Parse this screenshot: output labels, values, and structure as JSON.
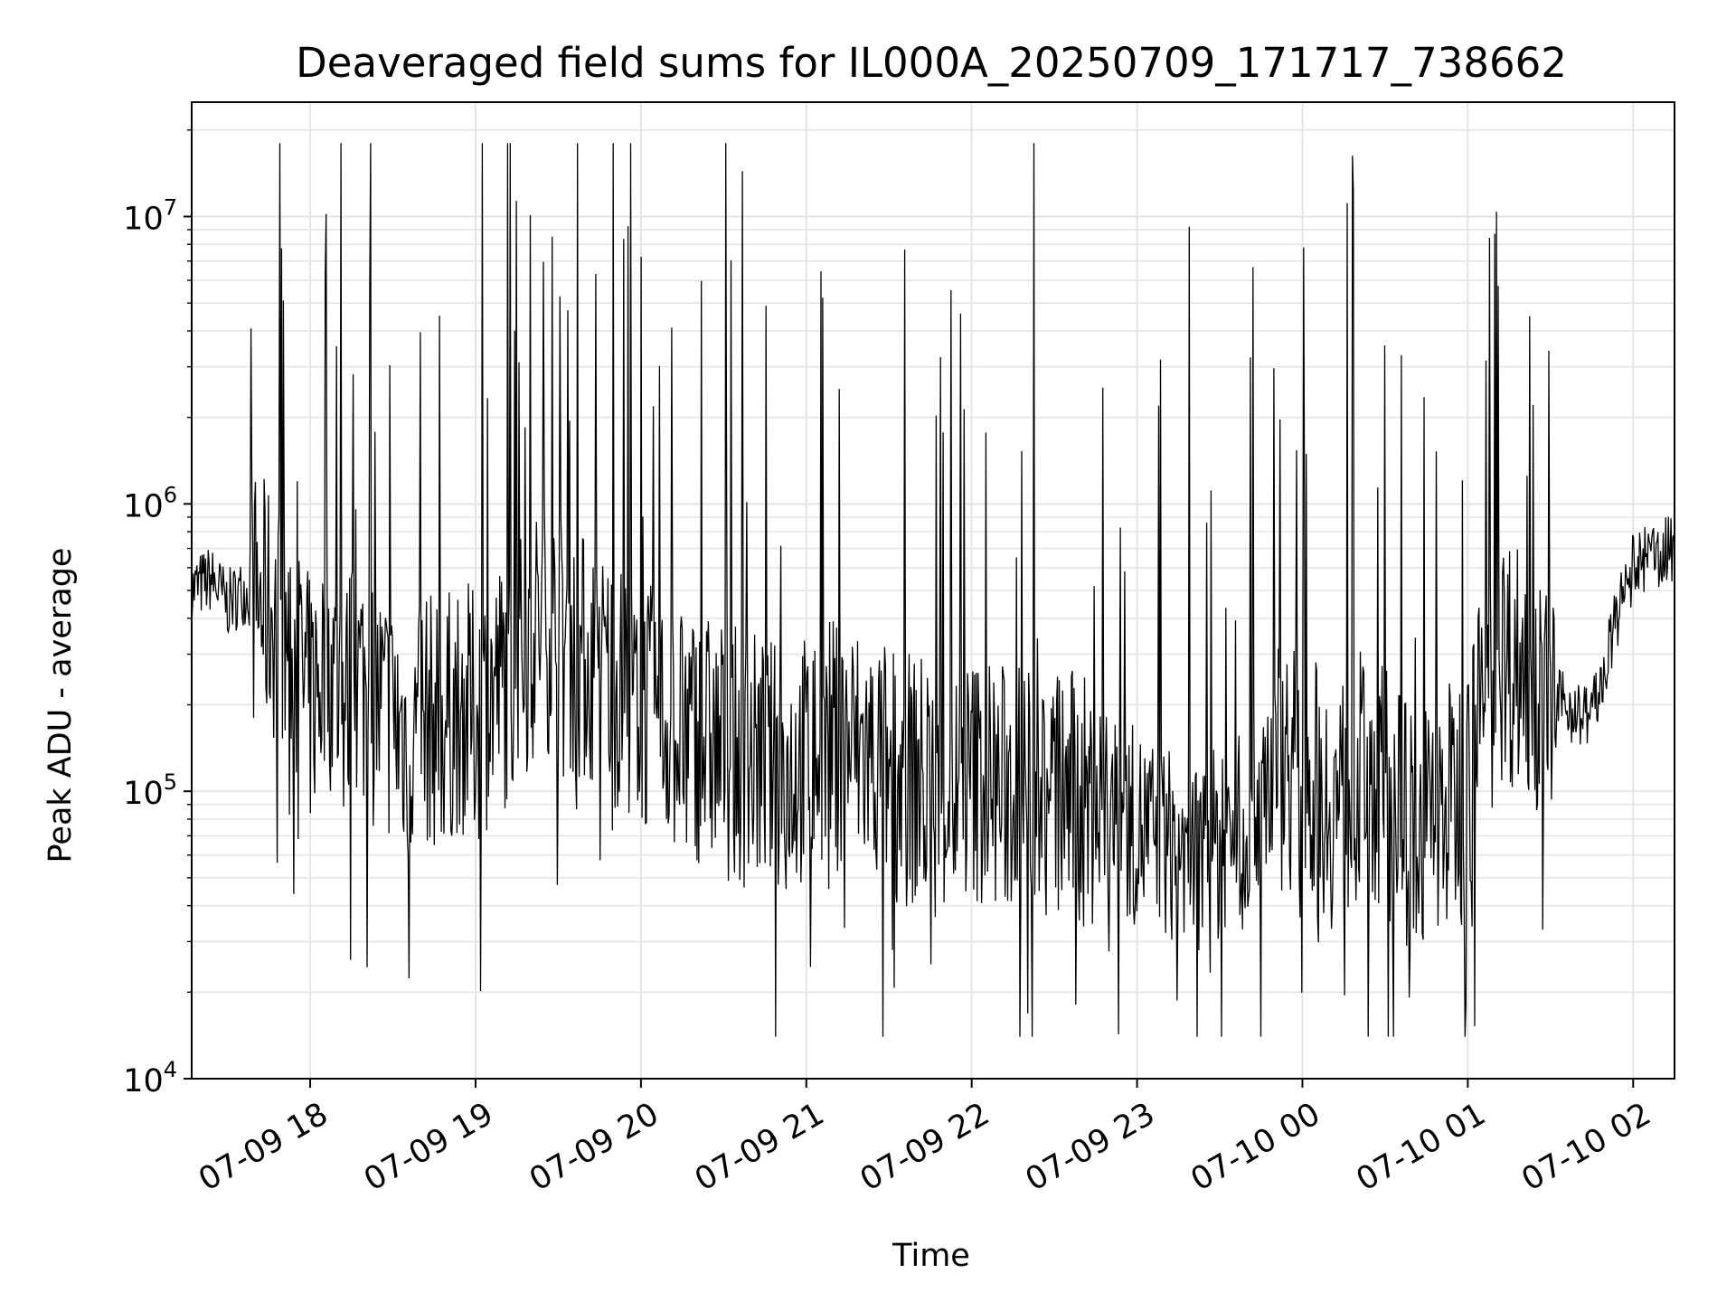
{
  "chart_data": {
    "type": "line",
    "title": "Deaveraged field sums for IL000A_20250709_171717_738662",
    "xlabel": "Time",
    "ylabel": "Peak ADU - average",
    "y_scale": "log",
    "ylim": [
      10000,
      25000000
    ],
    "xlim": [
      "2025-07-09 17:17",
      "2025-07-10 02:15"
    ],
    "x_ticks": [
      {
        "x": "2025-07-09 18:00",
        "label": "07-09 18"
      },
      {
        "x": "2025-07-09 19:00",
        "label": "07-09 19"
      },
      {
        "x": "2025-07-09 20:00",
        "label": "07-09 20"
      },
      {
        "x": "2025-07-09 21:00",
        "label": "07-09 21"
      },
      {
        "x": "2025-07-09 22:00",
        "label": "07-09 22"
      },
      {
        "x": "2025-07-09 23:00",
        "label": "07-09 23"
      },
      {
        "x": "2025-07-10 00:00",
        "label": "07-10 00"
      },
      {
        "x": "2025-07-10 01:00",
        "label": "07-10 01"
      },
      {
        "x": "2025-07-10 02:00",
        "label": "07-10 02"
      }
    ],
    "y_ticks": [
      {
        "value": 10000,
        "base": "10",
        "exp": "4"
      },
      {
        "value": 100000,
        "base": "10",
        "exp": "5"
      },
      {
        "value": 1000000,
        "base": "10",
        "exp": "6"
      },
      {
        "value": 10000000,
        "base": "10",
        "exp": "7"
      }
    ],
    "grid": true,
    "line_color": "#000000",
    "series": [
      {
        "x": [
          "2025-07-09 17:17",
          "2025-07-09 17:24",
          "2025-07-09 17:30",
          "2025-07-09 17:36",
          "2025-07-09 17:42",
          "2025-07-09 17:48",
          "2025-07-09 17:54",
          "2025-07-09 18:00",
          "2025-07-09 18:06",
          "2025-07-09 18:12",
          "2025-07-09 18:18",
          "2025-07-09 18:24",
          "2025-07-09 18:30",
          "2025-07-09 18:36",
          "2025-07-09 18:42",
          "2025-07-09 18:48",
          "2025-07-09 18:54",
          "2025-07-09 19:00",
          "2025-07-09 19:06",
          "2025-07-09 19:12",
          "2025-07-09 19:18",
          "2025-07-09 19:24",
          "2025-07-09 19:30",
          "2025-07-09 19:36",
          "2025-07-09 19:42",
          "2025-07-09 19:48",
          "2025-07-09 19:54",
          "2025-07-09 20:00",
          "2025-07-09 20:06",
          "2025-07-09 20:12",
          "2025-07-09 20:18",
          "2025-07-09 20:24",
          "2025-07-09 20:30",
          "2025-07-09 20:36",
          "2025-07-09 20:42",
          "2025-07-09 20:48",
          "2025-07-09 20:54",
          "2025-07-09 21:00",
          "2025-07-09 21:06",
          "2025-07-09 21:12",
          "2025-07-09 21:18",
          "2025-07-09 21:24",
          "2025-07-09 21:30",
          "2025-07-09 21:36",
          "2025-07-09 21:42",
          "2025-07-09 21:48",
          "2025-07-09 21:54",
          "2025-07-09 22:00",
          "2025-07-09 22:06",
          "2025-07-09 22:12",
          "2025-07-09 22:18",
          "2025-07-09 22:24",
          "2025-07-09 22:30",
          "2025-07-09 22:36",
          "2025-07-09 22:42",
          "2025-07-09 22:48",
          "2025-07-09 22:54",
          "2025-07-09 23:00",
          "2025-07-09 23:06",
          "2025-07-09 23:12",
          "2025-07-09 23:18",
          "2025-07-09 23:24",
          "2025-07-09 23:30",
          "2025-07-09 23:36",
          "2025-07-09 23:42",
          "2025-07-09 23:48",
          "2025-07-09 23:54",
          "2025-07-10 00:00",
          "2025-07-10 00:06",
          "2025-07-10 00:12",
          "2025-07-10 00:18",
          "2025-07-10 00:24",
          "2025-07-10 00:30",
          "2025-07-10 00:36",
          "2025-07-10 00:42",
          "2025-07-10 00:48",
          "2025-07-10 00:54",
          "2025-07-10 01:00",
          "2025-07-10 01:06",
          "2025-07-10 01:12",
          "2025-07-10 01:18",
          "2025-07-10 01:24",
          "2025-07-10 01:30",
          "2025-07-10 01:36",
          "2025-07-10 01:42",
          "2025-07-10 01:48",
          "2025-07-10 01:54",
          "2025-07-10 02:00",
          "2025-07-10 02:06",
          "2025-07-10 02:14"
        ],
        "y": [
          500000,
          550000,
          450000,
          500000,
          450000,
          400000,
          300000,
          200000,
          300000,
          200000,
          250000,
          200000,
          180000,
          150000,
          180000,
          170000,
          200000,
          180000,
          220000,
          250000,
          300000,
          400000,
          350000,
          300000,
          280000,
          250000,
          220000,
          200000,
          180000,
          170000,
          160000,
          150000,
          140000,
          130000,
          130000,
          120000,
          120000,
          130000,
          140000,
          150000,
          140000,
          130000,
          120000,
          110000,
          110000,
          100000,
          100000,
          110000,
          110000,
          100000,
          100000,
          100000,
          100000,
          95000,
          90000,
          85000,
          80000,
          75000,
          70000,
          65000,
          60000,
          60000,
          65000,
          70000,
          90000,
          120000,
          130000,
          120000,
          100000,
          90000,
          100000,
          120000,
          100000,
          80000,
          70000,
          80000,
          90000,
          110000,
          200000,
          300000,
          280000,
          250000,
          200000,
          200000,
          180000,
          220000,
          400000,
          600000,
          650000,
          700000
        ]
      }
    ]
  }
}
